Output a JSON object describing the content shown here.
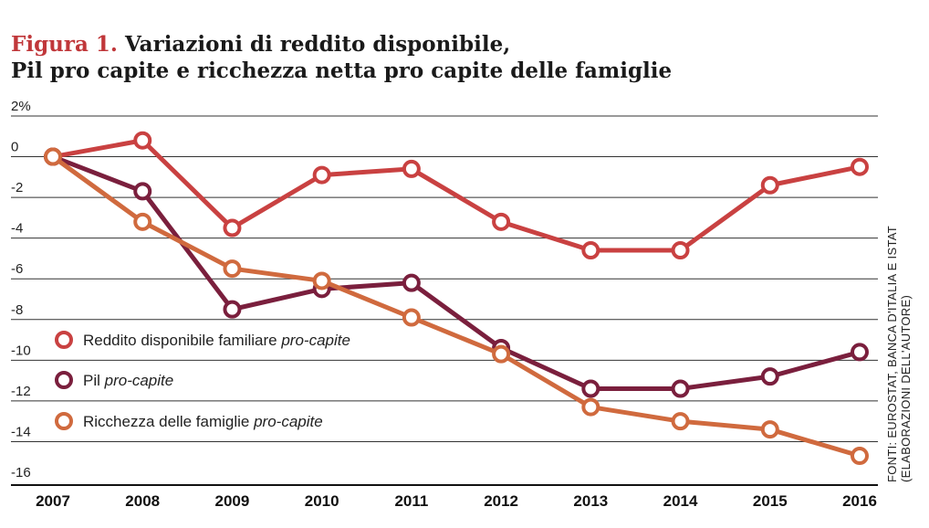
{
  "title": {
    "label": "Figura 1.",
    "line1": "Variazioni di reddito disponibile,",
    "line2": "Pil pro capite e ricchezza netta pro capite delle famiglie"
  },
  "source": {
    "line1": "FONTI: EUROSTAT, BANCA D'ITALIA E ISTAT",
    "line2": "(ELABORAZIONI DELL'AUTORE)"
  },
  "colors": {
    "reddito": "#c94141",
    "pil": "#7a1f3d",
    "ricchezza": "#d06a3e"
  },
  "chart_data": {
    "type": "line",
    "title": "Figura 1. Variazioni di reddito disponibile, Pil pro capite e ricchezza netta pro capite delle famiglie",
    "xlabel": "",
    "ylabel": "",
    "ylim": [
      -16,
      2
    ],
    "grid": true,
    "x": [
      "2007",
      "2008",
      "2009",
      "2010",
      "2011",
      "2012",
      "2013",
      "2014",
      "2015",
      "2016"
    ],
    "y_tick_labels": [
      "2%",
      "0",
      "-2",
      "-4",
      "-6",
      "-8",
      "-10",
      "-12",
      "-14",
      "-16"
    ],
    "y_tick_values": [
      2,
      0,
      -2,
      -4,
      -6,
      -8,
      -10,
      -12,
      -14,
      -16
    ],
    "legend_position": "left",
    "series": [
      {
        "key": "reddito",
        "name_main": "Reddito disponibile familiare ",
        "name_italic": "pro-capite",
        "values": [
          0,
          0.8,
          -3.5,
          -0.9,
          -0.6,
          -3.2,
          -4.6,
          -4.6,
          -1.4,
          -0.5
        ]
      },
      {
        "key": "pil",
        "name_main": "Pil ",
        "name_italic": "pro-capite",
        "values": [
          0,
          -1.7,
          -7.5,
          -6.5,
          -6.2,
          -9.4,
          -11.4,
          -11.4,
          -10.8,
          -9.6
        ]
      },
      {
        "key": "ricchezza",
        "name_main": "Ricchezza delle famiglie ",
        "name_italic": "pro-capite",
        "values": [
          0,
          -3.2,
          -5.5,
          -6.1,
          -7.9,
          -9.7,
          -12.3,
          -13.0,
          -13.4,
          -14.7
        ]
      }
    ]
  }
}
